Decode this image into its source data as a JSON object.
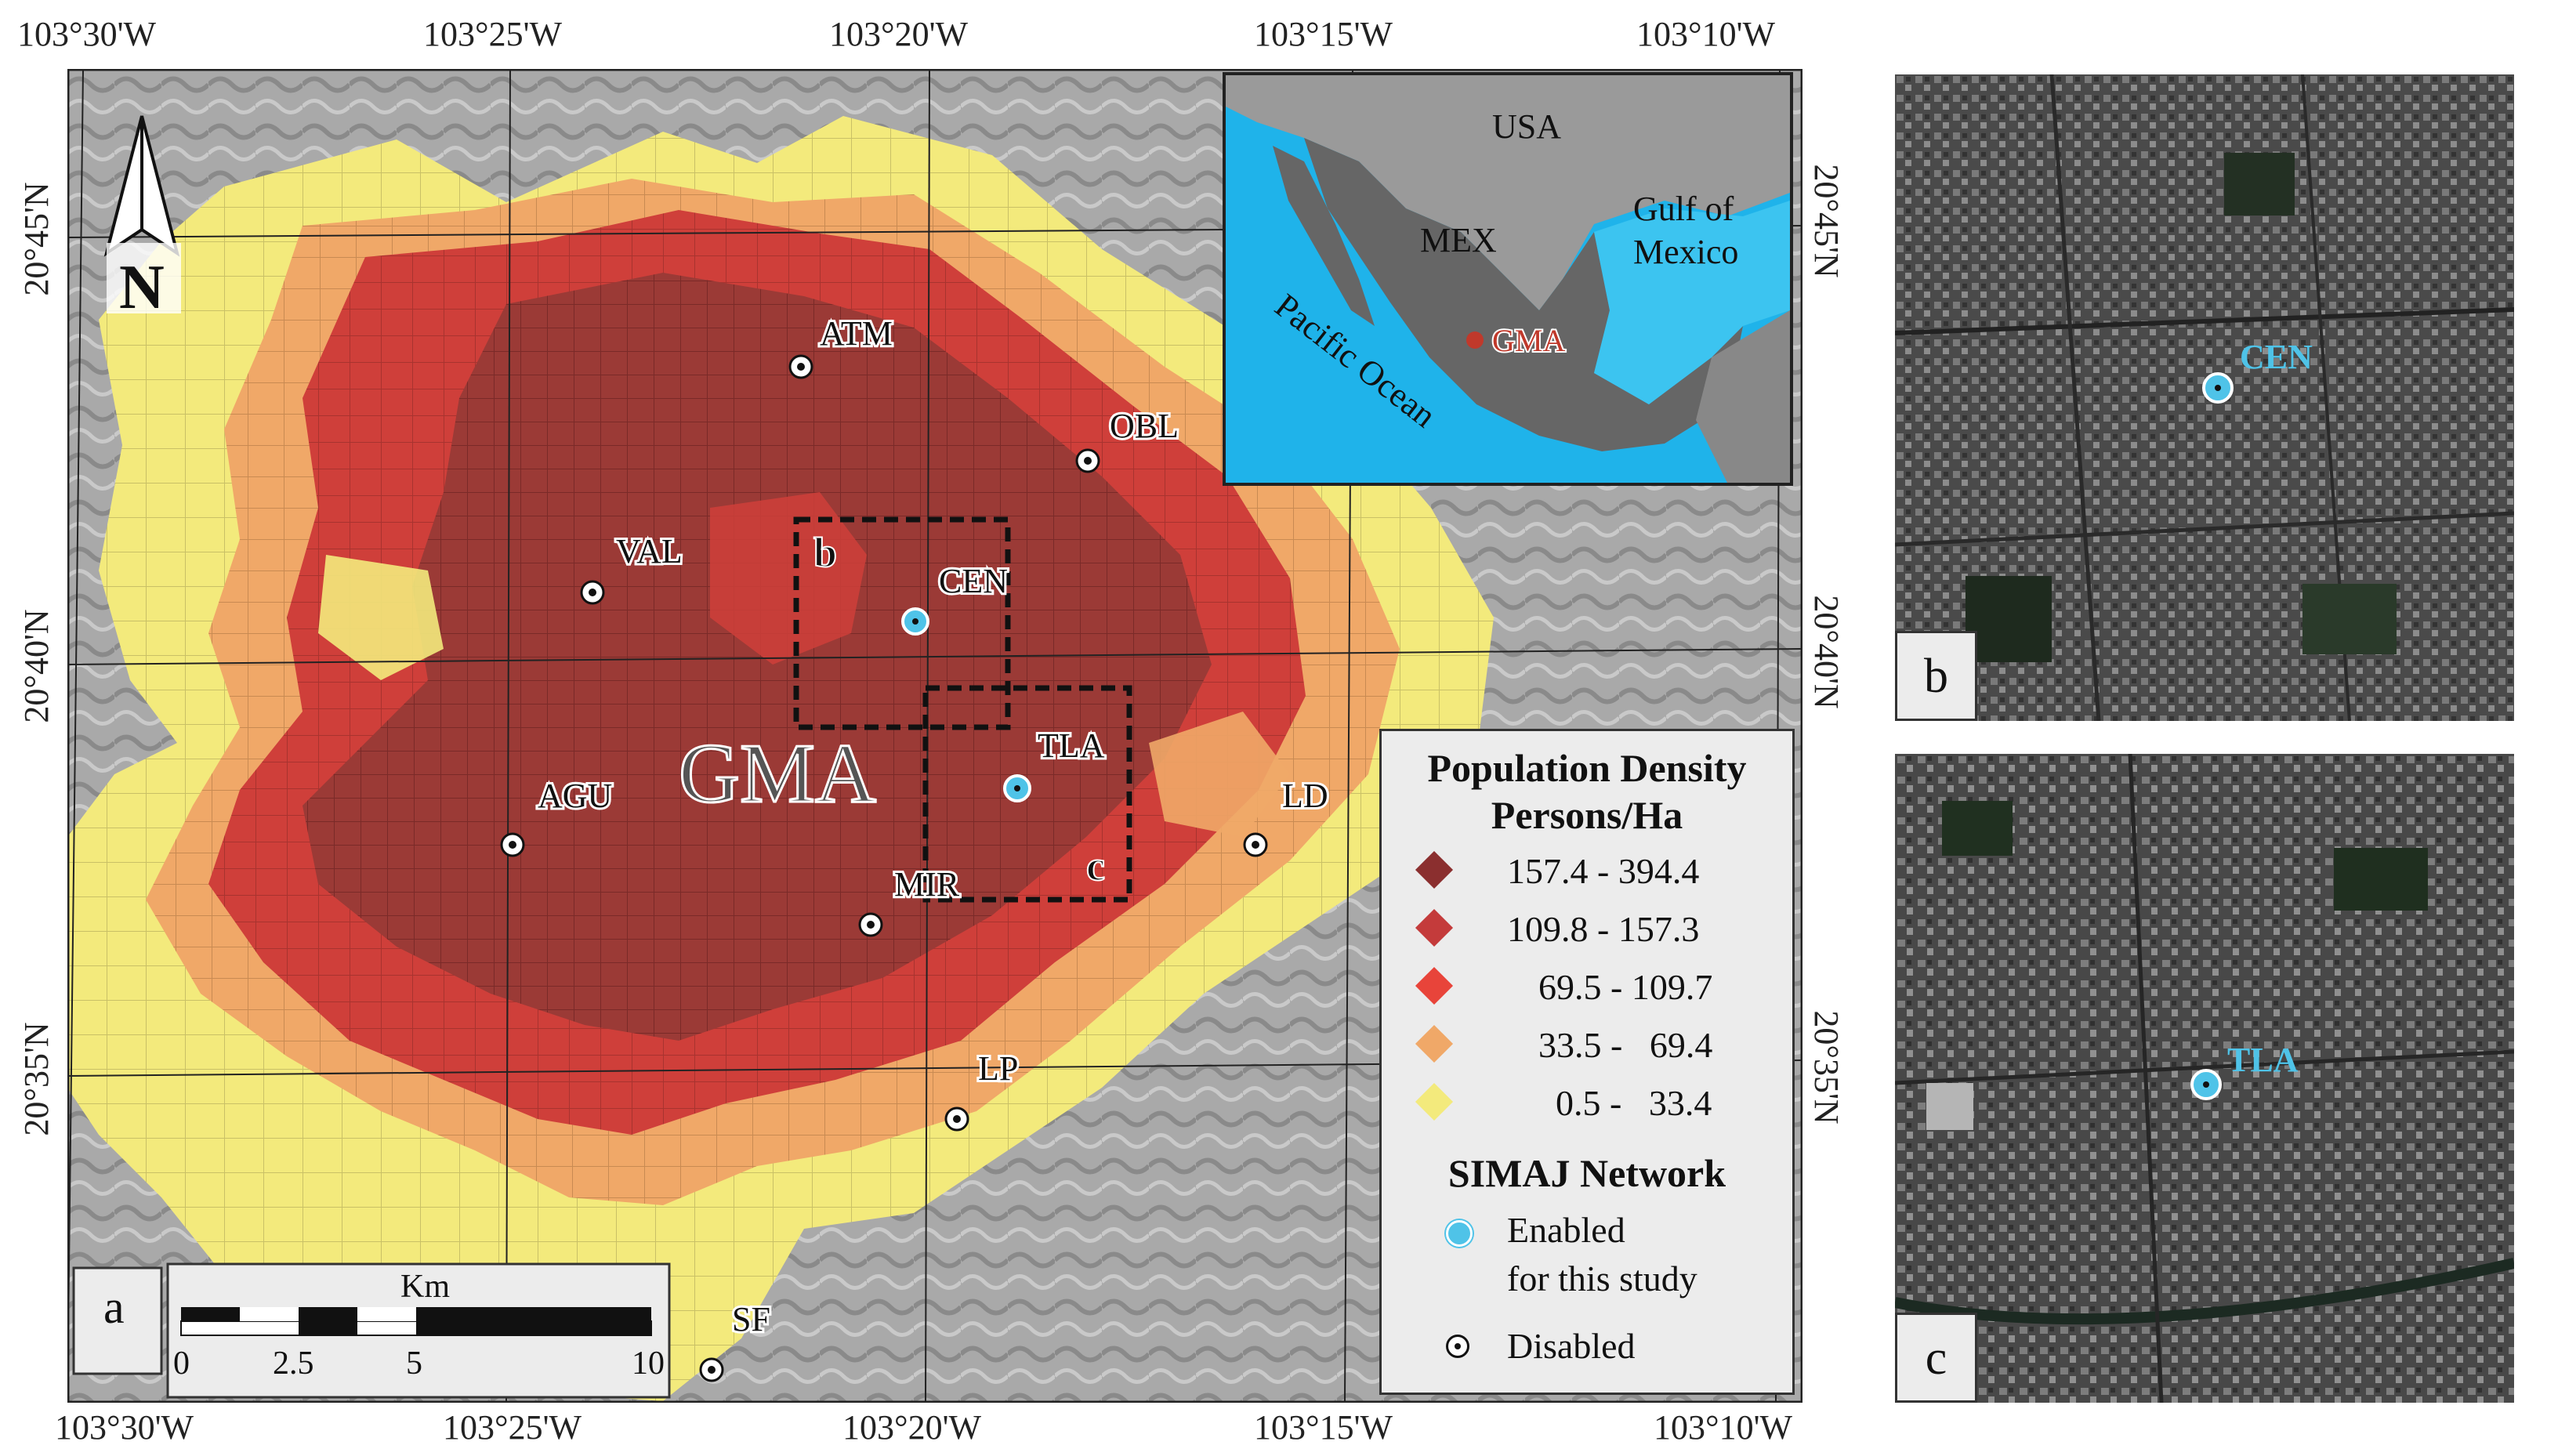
{
  "main_map": {
    "panel_label": "a",
    "top_lon_labels": [
      "103°30'W",
      "103°25'W",
      "103°20'W",
      "103°15'W",
      "103°10'W"
    ],
    "bottom_lon_labels": [
      "103°30'W",
      "103°25'W",
      "103°20'W",
      "103°15'W",
      "103°10'W"
    ],
    "left_lat_labels": [
      "20°45'N",
      "20°40'N",
      "20°35'N"
    ],
    "right_lat_labels": [
      "20°45'N",
      "20°40'N",
      "20°35'N"
    ],
    "area_label": "GMA",
    "zoom_box_labels": [
      "b",
      "c"
    ],
    "stations": [
      {
        "code": "ATM",
        "status": "disabled"
      },
      {
        "code": "OBL",
        "status": "disabled"
      },
      {
        "code": "VAL",
        "status": "disabled"
      },
      {
        "code": "CEN",
        "status": "enabled"
      },
      {
        "code": "TLA",
        "status": "enabled"
      },
      {
        "code": "AGU",
        "status": "disabled"
      },
      {
        "code": "LD",
        "status": "disabled"
      },
      {
        "code": "MIR",
        "status": "disabled"
      },
      {
        "code": "LP",
        "status": "disabled"
      },
      {
        "code": "SF",
        "status": "disabled"
      }
    ],
    "scale_bar": {
      "unit": "Km",
      "ticks": [
        "0",
        "2.5",
        "5",
        "10"
      ]
    },
    "north_arrow": "N"
  },
  "inset": {
    "country_usa": "USA",
    "country_mex": "MEX",
    "gulf_line1": "Gulf of",
    "gulf_line2": "Mexico",
    "ocean": "Pacific Ocean",
    "city": "GMA"
  },
  "legend": {
    "title_line1": "Population Density",
    "title_line2": "Persons/Ha",
    "classes": [
      {
        "range": "157.4 - 394.4",
        "color": "#8b2f2f"
      },
      {
        "range": "109.8 - 157.3",
        "color": "#c43b3b"
      },
      {
        "range": "69.5 - 109.7",
        "color": "#e8443a"
      },
      {
        "range": "33.5 -   69.4",
        "color": "#f0a868"
      },
      {
        "range": "0.5 -   33.4",
        "color": "#f3ea7c"
      }
    ],
    "network_title": "SIMAJ Network",
    "enabled_line1": "Enabled",
    "enabled_line2": "for this study",
    "disabled": "Disabled"
  },
  "panel_b": {
    "label": "b",
    "station": "CEN"
  },
  "panel_c": {
    "label": "c",
    "station": "TLA"
  },
  "colors": {
    "ocean": "#1fb3ea",
    "land": "#6b6b6b",
    "enabled_station": "#4fc3e8",
    "hillshade": "#a8a8a8"
  }
}
